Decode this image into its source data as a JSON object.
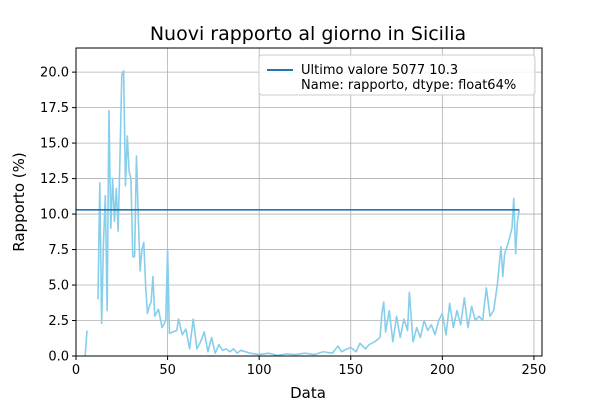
{
  "chart_data": {
    "type": "line",
    "title": "Nuovi rapporto al giorno in Sicilia",
    "xlabel": "Data",
    "ylabel": "Rapporto (%)",
    "x": [
      5,
      6,
      7,
      12,
      13,
      14,
      15,
      16,
      17,
      18,
      19,
      20,
      21,
      22,
      23,
      24,
      25,
      26,
      27,
      28,
      29,
      30,
      31,
      32,
      33,
      34,
      35,
      36,
      37,
      38,
      39,
      40,
      41,
      42,
      43,
      45,
      47,
      49,
      50,
      51,
      53,
      55,
      56,
      58,
      60,
      62,
      64,
      66,
      68,
      70,
      72,
      74,
      76,
      78,
      80,
      82,
      84,
      86,
      88,
      90,
      95,
      100,
      105,
      110,
      115,
      120,
      125,
      130,
      135,
      140,
      143,
      145,
      148,
      150,
      153,
      155,
      158,
      160,
      163,
      166,
      167,
      168,
      169,
      171,
      173,
      175,
      177,
      179,
      181,
      182,
      184,
      186,
      188,
      190,
      192,
      194,
      196,
      198,
      200,
      202,
      204,
      206,
      208,
      210,
      212,
      214,
      216,
      218,
      220,
      222,
      224,
      226,
      228,
      230,
      232,
      233,
      234,
      236,
      238,
      239,
      240,
      241,
      242
    ],
    "series": [
      {
        "color": "#87ceeb",
        "values": [
          0,
          1.8,
          null,
          4.0,
          12.2,
          2.3,
          8,
          11.3,
          3.2,
          17.3,
          9,
          12.5,
          9.5,
          11.8,
          8.8,
          14,
          19.8,
          20.1,
          12,
          15.5,
          13,
          12.5,
          7,
          7,
          14.1,
          9.8,
          6,
          7.5,
          8,
          5,
          3,
          3.5,
          3.8,
          5.6,
          2.8,
          3.3,
          2,
          2.5,
          7.5,
          1.6,
          1.7,
          1.8,
          2.6,
          1.5,
          1.9,
          0.5,
          2.6,
          0.5,
          1,
          1.7,
          0.3,
          1.3,
          0.2,
          0.8,
          0.4,
          0.5,
          0.3,
          0.5,
          0.2,
          0.4,
          0.2,
          0.1,
          0.2,
          0.05,
          0.15,
          0.1,
          0.2,
          0.1,
          0.3,
          0.2,
          0.7,
          0.3,
          0.5,
          0.6,
          0.3,
          0.9,
          0.5,
          0.8,
          1,
          1.3,
          3,
          3.8,
          1.7,
          3.2,
          1,
          2.8,
          1.3,
          2.6,
          1.8,
          4.5,
          1,
          2,
          1.3,
          2.5,
          1.8,
          2.2,
          1.5,
          2.5,
          3,
          1.5,
          3.7,
          2,
          3.2,
          2.2,
          4.1,
          2,
          3.5,
          2.5,
          2.8,
          2.5,
          4.8,
          2.8,
          3.2,
          5,
          7.7,
          5.6,
          7.2,
          8,
          9,
          11.1,
          7.2,
          9.5,
          10.3
        ]
      },
      {
        "name": "Ultimo valore 5077    10.3\nName: rapporto, dtype: float64%",
        "color": "#1f77b4",
        "hline": 10.3
      }
    ],
    "xlim": [
      0,
      254.4
    ],
    "ylim": [
      0,
      21.7
    ],
    "xticks": [
      0,
      50,
      100,
      150,
      200,
      250
    ],
    "yticks": [
      {
        "value": 0,
        "label": "0.0"
      },
      {
        "value": 2.5,
        "label": "2.5"
      },
      {
        "value": 5,
        "label": "5.0"
      },
      {
        "value": 7.5,
        "label": "7.5"
      },
      {
        "value": 10,
        "label": "10.0"
      },
      {
        "value": 12.5,
        "label": "12.5"
      },
      {
        "value": 15,
        "label": "15.0"
      },
      {
        "value": 17.5,
        "label": "17.5"
      },
      {
        "value": 20,
        "label": "20.0"
      }
    ],
    "grid": true,
    "legend": "upper right"
  }
}
